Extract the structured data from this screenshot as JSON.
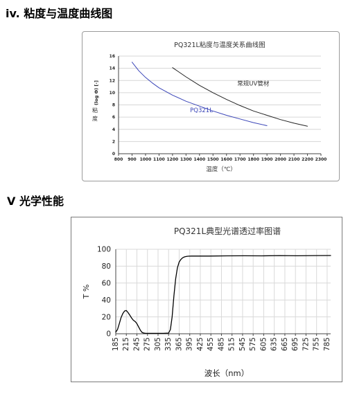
{
  "sections": {
    "viscosity_heading": "iv. 粘度与温度曲线图",
    "optical_heading": "V  光学性能"
  },
  "chart_data": [
    {
      "type": "line",
      "title": "PQ321L粘度与温度关系曲线图",
      "xlabel": "温度（℃）",
      "ylabel_parts": [
        "(log Θ) [-]",
        "粘",
        "度"
      ],
      "xlim": [
        800,
        2300
      ],
      "ylim": [
        0,
        16
      ],
      "xticks": [
        800,
        900,
        1000,
        1100,
        1200,
        1300,
        1400,
        1500,
        1600,
        1700,
        1800,
        1900,
        2000,
        2100,
        2200,
        2300
      ],
      "yticks": [
        0,
        2,
        4,
        6,
        8,
        10,
        12,
        14,
        16
      ],
      "grid": true,
      "series": [
        {
          "name": "PQ321L",
          "color": "#3a45b8",
          "label_at": [
            1330,
            6.8
          ],
          "x": [
            900,
            950,
            1000,
            1050,
            1100,
            1150,
            1200,
            1300,
            1400,
            1500,
            1600,
            1700,
            1800,
            1900
          ],
          "y": [
            15.0,
            13.6,
            12.5,
            11.6,
            10.8,
            10.2,
            9.6,
            8.6,
            7.8,
            7.0,
            6.3,
            5.7,
            5.1,
            4.6
          ]
        },
        {
          "name": "常规UV管材",
          "color": "#222222",
          "label_at": [
            1680,
            11.2
          ],
          "x": [
            1200,
            1300,
            1400,
            1500,
            1600,
            1700,
            1800,
            1900,
            2000,
            2100,
            2200
          ],
          "y": [
            14.1,
            12.6,
            11.2,
            10.0,
            8.9,
            7.9,
            7.0,
            6.3,
            5.6,
            5.0,
            4.5
          ]
        }
      ]
    },
    {
      "type": "line",
      "title": "PQ321L典型光谱透过率图谱",
      "xlabel": "波长（nm）",
      "ylabel": "T %",
      "xlim": [
        185,
        795
      ],
      "ylim": [
        0,
        100
      ],
      "xticks": [
        185,
        215,
        245,
        275,
        305,
        335,
        365,
        395,
        425,
        455,
        485,
        515,
        545,
        575,
        605,
        635,
        665,
        695,
        725,
        755,
        785
      ],
      "yticks": [
        0,
        20,
        40,
        60,
        80,
        100
      ],
      "grid": true,
      "series": [
        {
          "color": "#000000",
          "x": [
            185,
            190,
            195,
            200,
            205,
            210,
            215,
            220,
            225,
            230,
            235,
            240,
            245,
            250,
            255,
            260,
            265,
            270,
            280,
            300,
            320,
            335,
            340,
            345,
            350,
            355,
            360,
            365,
            370,
            375,
            380,
            385,
            390,
            400,
            420,
            450,
            500,
            550,
            600,
            650,
            700,
            750,
            795
          ],
          "y": [
            2,
            5,
            12,
            19,
            24,
            27,
            27.5,
            25,
            22,
            18.5,
            16,
            14.5,
            12,
            8,
            4,
            1.5,
            0.8,
            0.5,
            0.5,
            0.5,
            0.5,
            0.8,
            5,
            20,
            45,
            65,
            78,
            85,
            88,
            90,
            91,
            91.5,
            91.8,
            92,
            92,
            92,
            92.2,
            92.3,
            92.2,
            92.5,
            92.3,
            92.5,
            92.6
          ]
        }
      ]
    }
  ]
}
